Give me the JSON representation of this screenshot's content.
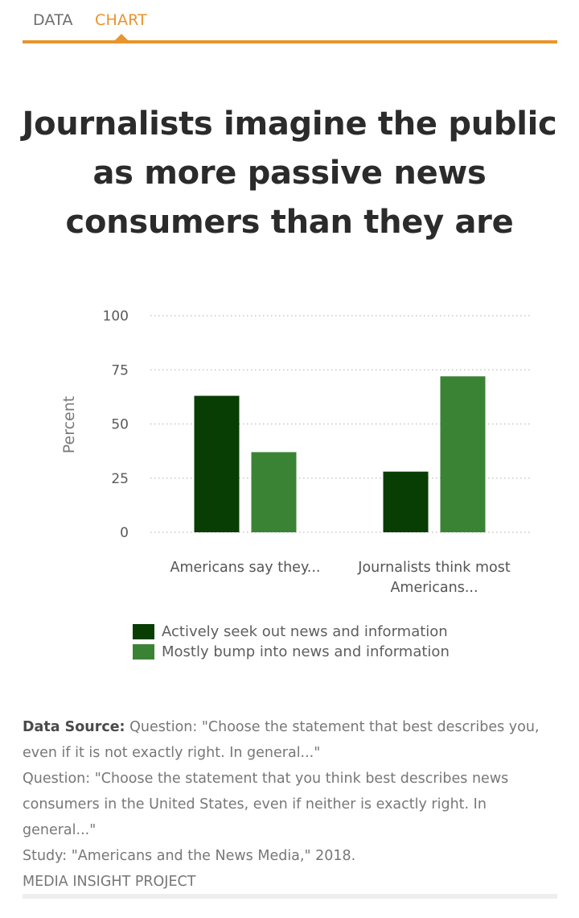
{
  "tabs": [
    {
      "label": "DATA",
      "active": false
    },
    {
      "label": "CHART",
      "active": true
    }
  ],
  "colors": {
    "accent": "#e8952e",
    "series1": "#083d04",
    "series2": "#3b8334"
  },
  "chart_data": {
    "type": "bar",
    "title": "Journalists imagine the public as more passive news consumers than they are",
    "categories": [
      "Americans say they...",
      "Journalists think most Americans..."
    ],
    "series": [
      {
        "name": "Actively seek out news and information",
        "values": [
          63,
          28
        ]
      },
      {
        "name": "Mostly bump into news and information",
        "values": [
          37,
          72
        ]
      }
    ],
    "xlabel": "",
    "ylabel": "Percent",
    "ylim": [
      0,
      100
    ],
    "yticks": [
      0,
      25,
      50,
      75,
      100
    ],
    "grid": true,
    "legend": "bottom"
  },
  "source": {
    "label": "Data Source:",
    "text1": " Question: \"Choose the statement that best describes you, even if it is not exactly right. In general...\"",
    "text2": "Question: \"Choose the statement that you think best describes news consumers in the United States, even if neither is exactly right. In general...\"",
    "text3": "Study: \"Americans and the News Media,\" 2018.",
    "text4": "MEDIA INSIGHT PROJECT"
  }
}
